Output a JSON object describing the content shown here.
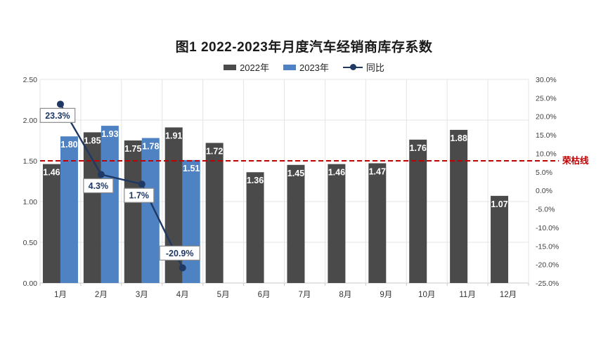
{
  "title": "图1  2022-2023年月度汽车经销商库存系数",
  "legend": [
    {
      "label": "2022年",
      "color": "#4A4A4A",
      "type": "bar"
    },
    {
      "label": "2023年",
      "color": "#4E82C2",
      "type": "bar"
    },
    {
      "label": "同比",
      "color": "#1F3864",
      "type": "line"
    }
  ],
  "chart_data": {
    "type": "bar+line combo",
    "title": "图1  2022-2023年月度汽车经销商库存系数",
    "categories": [
      "1月",
      "2月",
      "3月",
      "4月",
      "5月",
      "6月",
      "7月",
      "8月",
      "9月",
      "10月",
      "11月",
      "12月"
    ],
    "series": [
      {
        "name": "2022年",
        "type": "bar",
        "axis": "left",
        "color": "#4A4A4A",
        "values": [
          1.46,
          1.85,
          1.75,
          1.91,
          1.72,
          1.36,
          1.45,
          1.46,
          1.47,
          1.76,
          1.88,
          1.07
        ],
        "value_labels": [
          "1.46",
          "1.85",
          "1.75",
          "1.91",
          "1.72",
          "1.36",
          "1.45",
          "1.46",
          "1.47",
          "1.76",
          "1.88",
          "1.07"
        ]
      },
      {
        "name": "2023年",
        "type": "bar",
        "axis": "left",
        "color": "#4E82C2",
        "values": [
          1.8,
          1.93,
          1.78,
          1.51,
          null,
          null,
          null,
          null,
          null,
          null,
          null,
          null
        ],
        "value_labels": [
          "1.80",
          "1.93",
          "1.78",
          "1.51"
        ]
      },
      {
        "name": "同比",
        "type": "line",
        "axis": "right",
        "color": "#1F3864",
        "values": [
          23.3,
          4.3,
          1.7,
          -20.9,
          null,
          null,
          null,
          null,
          null,
          null,
          null,
          null
        ],
        "callouts": [
          {
            "text": "23.3%",
            "side": "below"
          },
          {
            "text": "4.3%",
            "side": "below"
          },
          {
            "text": "1.7%",
            "side": "below"
          },
          {
            "text": "-20.9%",
            "side": "above"
          }
        ]
      }
    ],
    "left_axis": {
      "ticks": [
        "2.50",
        "2.00",
        "1.50",
        "1.00",
        "0.50",
        "0.00"
      ],
      "tick_values": [
        2.5,
        2.0,
        1.5,
        1.0,
        0.5,
        0.0
      ],
      "min": 0,
      "max": 2.5
    },
    "right_axis": {
      "ticks": [
        "30.0%",
        "25.0%",
        "20.0%",
        "15.0%",
        "10.0%",
        "5.0%",
        "0.0%",
        "-5.0%",
        "-10.0%",
        "-15.0%",
        "-20.0%",
        "-25.0%"
      ],
      "tick_values": [
        30,
        25,
        20,
        15,
        10,
        5,
        0,
        -5,
        -10,
        -15,
        -20,
        -25
      ],
      "min": -25,
      "max": 30
    },
    "threshold": {
      "value": 1.5,
      "label": "荣枯线",
      "color": "#C00000"
    },
    "grid": true,
    "legend_position": "top",
    "colors": {
      "grid": "#E4E4E4",
      "axis_line": "#C9C9C9",
      "tick_text": "#404040",
      "bar_label_text": "#FFFFFF",
      "callout_border": "#8C8C8C",
      "callout_text": "#1F3864"
    }
  }
}
